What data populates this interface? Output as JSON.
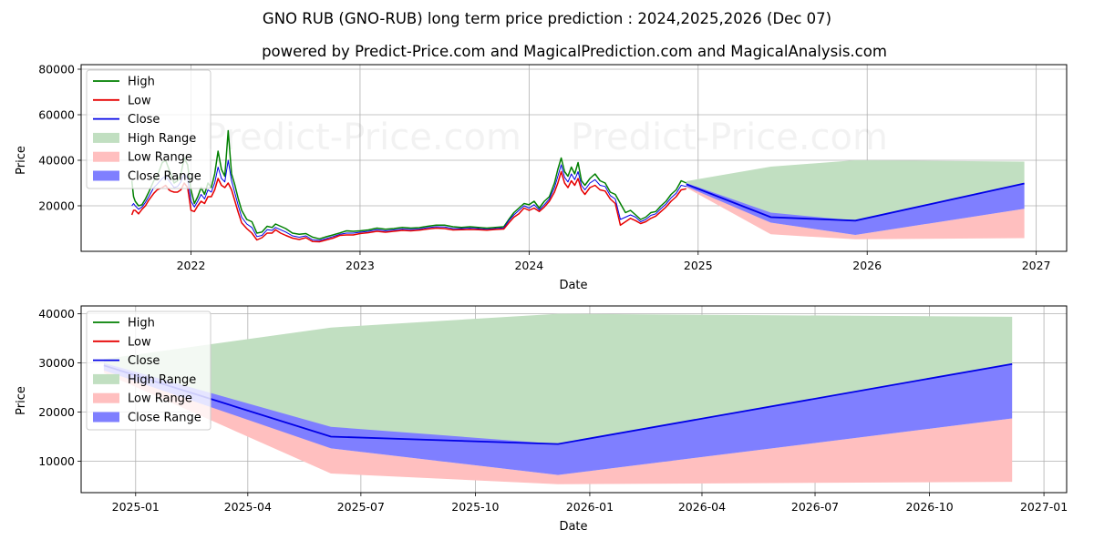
{
  "title": "GNO RUB (GNO-RUB) long term price prediction : 2024,2025,2026 (Dec 07)",
  "subtitle": "powered by Predict-Price.com and MagicalPrediction.com and MagicalAnalysis.com",
  "watermark": "Predict-Price.com",
  "colors": {
    "high": "#007f00",
    "low": "#e60000",
    "close": "#0000e6",
    "high_range": "#c1dfc1",
    "low_range": "#ffbfbf",
    "close_range": "#7f7fff",
    "grid": "#b0b0b0"
  },
  "legend": [
    {
      "label": "High",
      "kind": "line",
      "color": "#007f00"
    },
    {
      "label": "Low",
      "kind": "line",
      "color": "#e60000"
    },
    {
      "label": "Close",
      "kind": "line",
      "color": "#0000e6"
    },
    {
      "label": "High Range",
      "kind": "patch",
      "color": "#c1dfc1"
    },
    {
      "label": "Low Range",
      "kind": "patch",
      "color": "#ffbfbf"
    },
    {
      "label": "Close Range",
      "kind": "patch",
      "color": "#7f7fff"
    }
  ],
  "chart_data": [
    {
      "type": "line",
      "id": "top",
      "xlabel": "Date",
      "ylabel": "Price",
      "xlim": [
        2021.35,
        2027.18
      ],
      "ylim": [
        0,
        82000
      ],
      "xticks": [
        {
          "value": 2022,
          "label": "2022"
        },
        {
          "value": 2023,
          "label": "2023"
        },
        {
          "value": 2024,
          "label": "2024"
        },
        {
          "value": 2025,
          "label": "2025"
        },
        {
          "value": 2026,
          "label": "2026"
        },
        {
          "value": 2027,
          "label": "2027"
        }
      ],
      "yticks": [
        {
          "value": 20000,
          "label": "20000"
        },
        {
          "value": 40000,
          "label": "40000"
        },
        {
          "value": 60000,
          "label": "60000"
        },
        {
          "value": 80000,
          "label": "80000"
        }
      ],
      "history": {
        "x": [
          2021.65,
          2021.66,
          2021.67,
          2021.69,
          2021.71,
          2021.73,
          2021.75,
          2021.78,
          2021.8,
          2021.83,
          2021.85,
          2021.87,
          2021.88,
          2021.9,
          2021.92,
          2021.94,
          2021.96,
          2021.98,
          2022.0,
          2022.02,
          2022.04,
          2022.06,
          2022.08,
          2022.1,
          2022.12,
          2022.14,
          2022.16,
          2022.18,
          2022.2,
          2022.22,
          2022.24,
          2022.26,
          2022.28,
          2022.3,
          2022.33,
          2022.36,
          2022.39,
          2022.42,
          2022.45,
          2022.48,
          2022.5,
          2022.53,
          2022.56,
          2022.6,
          2022.64,
          2022.68,
          2022.72,
          2022.76,
          2022.8,
          2022.84,
          2022.88,
          2022.92,
          2022.96,
          2023.0,
          2023.05,
          2023.1,
          2023.15,
          2023.2,
          2023.25,
          2023.3,
          2023.35,
          2023.4,
          2023.45,
          2023.5,
          2023.55,
          2023.6,
          2023.65,
          2023.7,
          2023.75,
          2023.8,
          2023.85,
          2023.88,
          2023.91,
          2023.94,
          2023.97,
          2024.0,
          2024.03,
          2024.06,
          2024.09,
          2024.12,
          2024.15,
          2024.17,
          2024.19,
          2024.21,
          2024.23,
          2024.25,
          2024.27,
          2024.29,
          2024.31,
          2024.33,
          2024.36,
          2024.39,
          2024.42,
          2024.45,
          2024.48,
          2024.51,
          2024.54,
          2024.57,
          2024.6,
          2024.63,
          2024.66,
          2024.69,
          2024.72,
          2024.75,
          2024.78,
          2024.81,
          2024.84,
          2024.87,
          2024.9,
          2024.93
        ],
        "high": [
          31000,
          24000,
          22000,
          20000,
          20500,
          23000,
          26000,
          31000,
          33000,
          39000,
          40000,
          36000,
          34000,
          30000,
          31000,
          34000,
          41000,
          38000,
          27000,
          21000,
          24000,
          28000,
          25000,
          30000,
          28000,
          34000,
          44000,
          36000,
          33000,
          53000,
          34000,
          29000,
          23000,
          18000,
          14000,
          13000,
          8000,
          8500,
          11000,
          10500,
          12000,
          11000,
          10000,
          8000,
          7500,
          7800,
          6200,
          5500,
          6400,
          7200,
          8100,
          9000,
          8800,
          9000,
          9400,
          10200,
          9700,
          10000,
          10500,
          10200,
          10400,
          11000,
          11500,
          11500,
          10800,
          10500,
          10800,
          10500,
          10200,
          10500,
          10800,
          14000,
          17000,
          19000,
          21000,
          20500,
          22000,
          19000,
          22000,
          24000,
          30000,
          36000,
          41000,
          35000,
          33000,
          37000,
          34000,
          39000,
          31000,
          29000,
          32000,
          34000,
          31000,
          30000,
          26000,
          25000,
          21000,
          17000,
          18000,
          16000,
          14000,
          15000,
          17000,
          17500,
          20000,
          22000,
          25000,
          27000,
          31000,
          30000
        ],
        "low": [
          16000,
          18000,
          18000,
          16500,
          18500,
          20000,
          22500,
          25500,
          27000,
          28000,
          29000,
          27000,
          26500,
          26000,
          26000,
          27000,
          30000,
          28000,
          18000,
          17500,
          20000,
          22000,
          21000,
          24000,
          24000,
          27000,
          32000,
          29000,
          28000,
          30000,
          27000,
          22000,
          17000,
          12500,
          10000,
          8000,
          5000,
          6000,
          8000,
          8000,
          9500,
          8000,
          7000,
          5800,
          5200,
          6000,
          4300,
          4200,
          5000,
          5800,
          7000,
          7200,
          7200,
          7800,
          8200,
          8800,
          8400,
          8800,
          9200,
          9000,
          9300,
          9800,
          10200,
          10000,
          9400,
          9500,
          9600,
          9500,
          9300,
          9600,
          9800,
          12500,
          15000,
          16500,
          19000,
          18000,
          19000,
          17500,
          19500,
          22000,
          26000,
          30000,
          35000,
          30000,
          28000,
          31000,
          29000,
          32000,
          27000,
          25000,
          28000,
          29000,
          27000,
          26500,
          23000,
          21000,
          11500,
          13000,
          14500,
          13500,
          12200,
          13000,
          14500,
          15500,
          17500,
          19500,
          22000,
          24000,
          27000,
          27500
        ],
        "close": [
          20000,
          21000,
          20000,
          18500,
          19500,
          21500,
          24000,
          28000,
          29500,
          32000,
          33000,
          31000,
          30000,
          28000,
          28500,
          30500,
          34000,
          32000,
          22000,
          19500,
          22000,
          25000,
          23000,
          27000,
          26000,
          30000,
          37000,
          32000,
          30500,
          40000,
          31000,
          25500,
          20000,
          15000,
          12000,
          10500,
          6500,
          7000,
          9500,
          9200,
          10500,
          9500,
          8500,
          6800,
          6200,
          6800,
          5000,
          4800,
          5600,
          6500,
          7500,
          8000,
          8000,
          8400,
          8800,
          9500,
          9000,
          9400,
          9800,
          9600,
          9800,
          10400,
          10800,
          10700,
          10000,
          10000,
          10200,
          10000,
          9700,
          10000,
          10300,
          13500,
          16000,
          18000,
          20000,
          19000,
          20500,
          18200,
          20500,
          23000,
          28000,
          33000,
          38000,
          32500,
          30500,
          34000,
          31500,
          35000,
          29000,
          27000,
          30000,
          31500,
          29000,
          28500,
          24500,
          23000,
          14000,
          15000,
          16000,
          15000,
          13000,
          14000,
          15800,
          16500,
          18800,
          20800,
          23500,
          25500,
          29000,
          28500
        ]
      }
    },
    {
      "type": "area",
      "id": "bottom",
      "xlabel": "Date",
      "ylabel": "Price",
      "xlim": [
        2024.88,
        2027.05
      ],
      "ylim": [
        3600,
        41600
      ],
      "xticks": [
        {
          "value": 2025.0,
          "label": "2025-01"
        },
        {
          "value": 2025.247,
          "label": "2025-04"
        },
        {
          "value": 2025.496,
          "label": "2025-07"
        },
        {
          "value": 2025.748,
          "label": "2025-10"
        },
        {
          "value": 2026.0,
          "label": "2026-01"
        },
        {
          "value": 2026.247,
          "label": "2026-04"
        },
        {
          "value": 2026.496,
          "label": "2026-07"
        },
        {
          "value": 2026.748,
          "label": "2026-10"
        },
        {
          "value": 2027.0,
          "label": "2027-01"
        }
      ],
      "yticks": [
        {
          "value": 10000,
          "label": "10000"
        },
        {
          "value": 20000,
          "label": "20000"
        },
        {
          "value": 30000,
          "label": "30000"
        },
        {
          "value": 40000,
          "label": "40000"
        }
      ]
    }
  ],
  "forecast": {
    "x": [
      2024.93,
      2025.43,
      2025.93,
      2026.93
    ],
    "high_range": {
      "upper": [
        30800,
        37200,
        40000,
        39400
      ],
      "lower": [
        30000,
        14000,
        13500,
        29800
      ]
    },
    "low_range": {
      "upper": [
        29500,
        12600,
        7200,
        18700
      ],
      "lower": [
        28000,
        7500,
        5300,
        5800
      ]
    },
    "close_range": {
      "upper": [
        30000,
        17000,
        13500,
        29800
      ],
      "lower": [
        28500,
        12600,
        7200,
        18700
      ]
    },
    "close": [
      29500,
      15000,
      13500,
      29800
    ]
  }
}
